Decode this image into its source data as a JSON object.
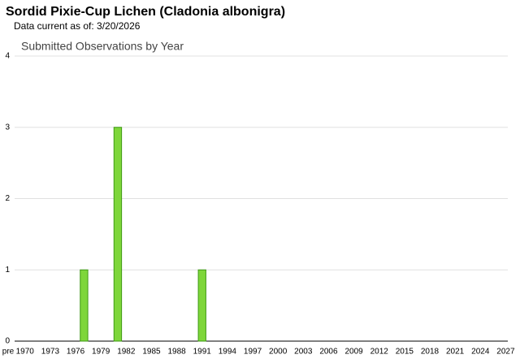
{
  "header": {
    "title": "Sordid Pixie-Cup Lichen   (Cladonia albonigra)",
    "subtitle": "Data current as of: 3/20/2026"
  },
  "chart_data": {
    "type": "bar",
    "title": "Submitted Observations by Year",
    "categories": [
      "pre",
      null,
      "1970",
      null,
      null,
      "1973",
      null,
      null,
      "1976",
      null,
      null,
      "1979",
      null,
      null,
      "1982",
      null,
      null,
      "1985",
      null,
      null,
      "1988",
      null,
      null,
      "1991",
      null,
      null,
      "1994",
      null,
      null,
      "1997",
      null,
      null,
      "2000",
      null,
      null,
      "2003",
      null,
      null,
      "2006",
      null,
      null,
      "2009",
      null,
      null,
      "2012",
      null,
      null,
      "2015",
      null,
      null,
      "2018",
      null,
      null,
      "2021",
      null,
      null,
      "2024",
      null,
      null,
      "2027"
    ],
    "values": [
      0,
      0,
      0,
      0,
      0,
      0,
      0,
      0,
      0,
      1,
      0,
      0,
      0,
      3,
      0,
      0,
      0,
      0,
      0,
      0,
      0,
      0,
      0,
      1,
      0,
      0,
      0,
      0,
      0,
      0,
      0,
      0,
      0,
      0,
      0,
      0,
      0,
      0,
      0,
      0,
      0,
      0,
      0,
      0,
      0,
      0,
      0,
      0,
      0,
      0,
      0,
      0,
      0,
      0,
      0,
      0,
      0,
      0,
      0,
      0
    ],
    "color": "#7ed63a",
    "ylim": [
      0,
      4
    ],
    "yticks": [
      0,
      1,
      2,
      3,
      4
    ],
    "grid": true
  }
}
